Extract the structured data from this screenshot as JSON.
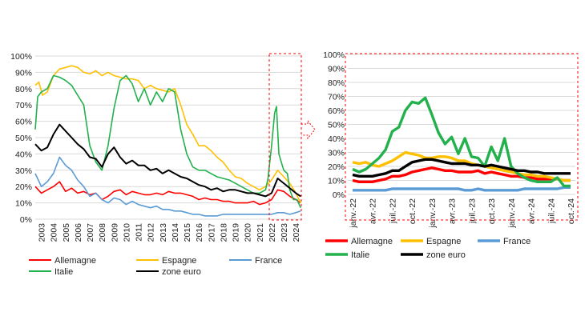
{
  "chart_data": [
    {
      "type": "line",
      "title": "",
      "xlabel": "",
      "ylabel": "",
      "ylim": [
        0,
        100
      ],
      "xlim": [
        2003,
        2024.95
      ],
      "grid": true,
      "y_ticks": [
        "0%",
        "10%",
        "20%",
        "30%",
        "40%",
        "50%",
        "60%",
        "70%",
        "80%",
        "90%",
        "100%"
      ],
      "x_ticks": [
        "2003",
        "2004",
        "2005",
        "2006",
        "2007",
        "2008",
        "2009",
        "2010",
        "2011",
        "2012",
        "2013",
        "2014",
        "2015",
        "2016",
        "2017",
        "2018",
        "2019",
        "2020",
        "2021",
        "2022",
        "2023",
        "2024"
      ],
      "legend_position": "bottom",
      "legend_order": [
        "Allemagne",
        "Espagne",
        "France",
        "Italie",
        "zone euro"
      ],
      "series": [
        {
          "name": "Allemagne",
          "color": "#ff0000",
          "x": [
            2003,
            2003.5,
            2004,
            2004.5,
            2005,
            2005.5,
            2006,
            2006.5,
            2007,
            2007.5,
            2008,
            2008.5,
            2009,
            2009.5,
            2010,
            2010.5,
            2011,
            2011.5,
            2012,
            2012.5,
            2013,
            2013.5,
            2014,
            2014.5,
            2015,
            2015.5,
            2016,
            2016.5,
            2017,
            2017.5,
            2018,
            2018.5,
            2019,
            2019.5,
            2020,
            2020.5,
            2021,
            2021.5,
            2022,
            2022.5,
            2023,
            2023.5,
            2024,
            2024.5,
            2024.9
          ],
          "y": [
            20,
            16,
            18,
            20,
            23,
            17,
            19,
            16,
            17,
            15,
            16,
            12,
            14,
            17,
            18,
            15,
            17,
            16,
            15,
            15,
            16,
            15,
            17,
            16,
            16,
            15,
            14,
            12,
            13,
            12,
            12,
            11,
            11,
            10,
            10,
            10,
            11,
            9,
            10,
            12,
            18,
            17,
            14,
            12,
            10
          ]
        },
        {
          "name": "Espagne",
          "color": "#ffc000",
          "x": [
            2003,
            2003.3,
            2003.6,
            2004,
            2004.5,
            2005,
            2005.5,
            2006,
            2006.5,
            2007,
            2007.5,
            2008,
            2008.5,
            2009,
            2009.5,
            2010,
            2010.5,
            2011,
            2011.5,
            2012,
            2012.5,
            2013,
            2013.5,
            2014,
            2014.5,
            2015,
            2015.5,
            2016,
            2016.5,
            2017,
            2017.5,
            2018,
            2018.5,
            2019,
            2019.5,
            2020,
            2020.5,
            2021,
            2021.5,
            2022,
            2022.5,
            2023,
            2023.5,
            2024,
            2024.5,
            2024.9
          ],
          "y": [
            82,
            84,
            76,
            78,
            88,
            92,
            93,
            94,
            93,
            90,
            89,
            91,
            88,
            90,
            88,
            87,
            86,
            86,
            85,
            80,
            82,
            80,
            79,
            78,
            80,
            70,
            58,
            52,
            45,
            45,
            42,
            38,
            35,
            30,
            26,
            25,
            22,
            20,
            18,
            20,
            24,
            30,
            26,
            22,
            16,
            10
          ]
        },
        {
          "name": "France",
          "color": "#5b9bd5",
          "x": [
            2003,
            2003.5,
            2004,
            2004.5,
            2005,
            2005.5,
            2006,
            2006.5,
            2007,
            2007.5,
            2008,
            2008.5,
            2009,
            2009.5,
            2010,
            2010.5,
            2011,
            2011.5,
            2012,
            2012.5,
            2013,
            2013.5,
            2014,
            2014.5,
            2015,
            2015.5,
            2016,
            2016.5,
            2017,
            2017.5,
            2018,
            2018.5,
            2019,
            2019.5,
            2020,
            2020.5,
            2021,
            2021.5,
            2022,
            2022.5,
            2023,
            2023.5,
            2024,
            2024.5,
            2024.9
          ],
          "y": [
            28,
            20,
            23,
            28,
            38,
            33,
            30,
            24,
            20,
            14,
            16,
            12,
            10,
            13,
            12,
            9,
            11,
            9,
            8,
            7,
            8,
            6,
            6,
            5,
            5,
            4,
            3,
            3,
            2,
            2,
            2,
            3,
            3,
            3,
            3,
            3,
            3,
            3,
            3,
            3,
            4,
            4,
            3,
            4,
            5
          ]
        },
        {
          "name": "Italie",
          "color": "#22b14c",
          "x": [
            2003,
            2003.2,
            2003.5,
            2004,
            2004.5,
            2005,
            2005.5,
            2006,
            2006.5,
            2007,
            2007.5,
            2008,
            2008.5,
            2009,
            2009.5,
            2010,
            2010.5,
            2011,
            2011.5,
            2012,
            2012.5,
            2013,
            2013.5,
            2014,
            2014.5,
            2015,
            2015.5,
            2016,
            2016.5,
            2017,
            2017.5,
            2018,
            2018.5,
            2019,
            2019.5,
            2020,
            2020.5,
            2021,
            2021.5,
            2022,
            2022.2,
            2022.5,
            2022.75,
            2022.9,
            2023.1,
            2023.3,
            2023.5,
            2023.8,
            2024,
            2024.3,
            2024.6,
            2024.9
          ],
          "y": [
            55,
            75,
            78,
            80,
            88,
            87,
            85,
            82,
            76,
            70,
            45,
            35,
            30,
            45,
            68,
            85,
            88,
            83,
            72,
            80,
            70,
            78,
            72,
            80,
            78,
            55,
            40,
            32,
            30,
            30,
            28,
            26,
            25,
            24,
            22,
            20,
            18,
            16,
            16,
            18,
            25,
            45,
            65,
            69,
            40,
            35,
            30,
            28,
            18,
            12,
            12,
            7
          ]
        },
        {
          "name": "zone euro",
          "color": "#000000",
          "x": [
            2003,
            2003.5,
            2004,
            2004.5,
            2005,
            2005.5,
            2006,
            2006.5,
            2007,
            2007.5,
            2008,
            2008.5,
            2009,
            2009.5,
            2010,
            2010.5,
            2011,
            2011.5,
            2012,
            2012.5,
            2013,
            2013.5,
            2014,
            2014.5,
            2015,
            2015.5,
            2016,
            2016.5,
            2017,
            2017.5,
            2018,
            2018.5,
            2019,
            2019.5,
            2020,
            2020.5,
            2021,
            2021.5,
            2022,
            2022.5,
            2023,
            2023.5,
            2024,
            2024.5,
            2024.9
          ],
          "y": [
            46,
            42,
            44,
            52,
            58,
            54,
            50,
            46,
            43,
            38,
            37,
            32,
            40,
            44,
            38,
            34,
            36,
            33,
            33,
            30,
            31,
            28,
            30,
            28,
            26,
            25,
            23,
            21,
            20,
            18,
            19,
            17,
            18,
            18,
            17,
            16,
            16,
            15,
            14,
            16,
            25,
            22,
            19,
            16,
            14
          ]
        }
      ]
    },
    {
      "type": "line",
      "title": "",
      "xlabel": "",
      "ylabel": "",
      "ylim": [
        0,
        100
      ],
      "grid": true,
      "y_ticks": [
        "0%",
        "10%",
        "20%",
        "30%",
        "40%",
        "50%",
        "60%",
        "70%",
        "80%",
        "90%",
        "100%"
      ],
      "x": [
        "janv.-22",
        "févr.-22",
        "mars-22",
        "avr.-22",
        "mai-22",
        "juin-22",
        "juil.-22",
        "août-22",
        "sept.-22",
        "oct.-22",
        "nov.-22",
        "déc.-22",
        "janv.-23",
        "févr.-23",
        "mars-23",
        "avr.-23",
        "mai-23",
        "juin-23",
        "juil.-23",
        "août-23",
        "sept.-23",
        "oct.-23",
        "nov.-23",
        "déc.-23",
        "janv.-24",
        "févr.-24",
        "mars-24",
        "avr.-24",
        "mai-24",
        "juin-24",
        "juil.-24",
        "août-24",
        "sept.-24",
        "oct.-24"
      ],
      "x_ticks": [
        "janv.-22",
        "avr.-22",
        "juil.-22",
        "oct.-22",
        "janv.-23",
        "avr.-23",
        "juil.-23",
        "oct.-23",
        "janv.-24",
        "avr.-24",
        "juil.-24",
        "oct.-24"
      ],
      "legend_position": "bottom",
      "legend_order": [
        "Allemagne",
        "Espagne",
        "France",
        "Italie",
        "zone euro"
      ],
      "series": [
        {
          "name": "Allemagne",
          "color": "#ff0000",
          "values": [
            10,
            9,
            9,
            9,
            10,
            11,
            13,
            13,
            14,
            16,
            17,
            18,
            19,
            18,
            17,
            17,
            16,
            16,
            16,
            17,
            15,
            16,
            15,
            14,
            13,
            13,
            12,
            12,
            11,
            11,
            11,
            11,
            10,
            10
          ]
        },
        {
          "name": "Espagne",
          "color": "#ffc000",
          "values": [
            23,
            22,
            23,
            21,
            20,
            22,
            24,
            27,
            30,
            29,
            28,
            26,
            26,
            27,
            27,
            26,
            24,
            24,
            22,
            21,
            20,
            19,
            18,
            17,
            16,
            15,
            14,
            14,
            13,
            13,
            12,
            11,
            10,
            10
          ]
        },
        {
          "name": "France",
          "color": "#5b9bd5",
          "values": [
            3,
            3,
            3,
            3,
            3,
            3,
            4,
            4,
            4,
            4,
            4,
            4,
            4,
            4,
            4,
            4,
            4,
            3,
            3,
            4,
            3,
            3,
            3,
            3,
            3,
            3,
            4,
            4,
            4,
            4,
            4,
            4,
            5,
            5
          ]
        },
        {
          "name": "Italie",
          "color": "#22b14c",
          "values": [
            18,
            16,
            18,
            22,
            26,
            32,
            45,
            48,
            60,
            66,
            65,
            69,
            57,
            44,
            36,
            41,
            29,
            40,
            27,
            26,
            20,
            34,
            24,
            40,
            20,
            15,
            12,
            10,
            9,
            9,
            9,
            12,
            6,
            6
          ]
        },
        {
          "name": "zone euro",
          "color": "#000000",
          "values": [
            14,
            13,
            13,
            13,
            14,
            15,
            17,
            17,
            20,
            23,
            24,
            25,
            25,
            24,
            23,
            22,
            22,
            22,
            21,
            21,
            20,
            21,
            20,
            19,
            18,
            17,
            17,
            16,
            16,
            15,
            15,
            15,
            15,
            15
          ]
        }
      ]
    }
  ]
}
